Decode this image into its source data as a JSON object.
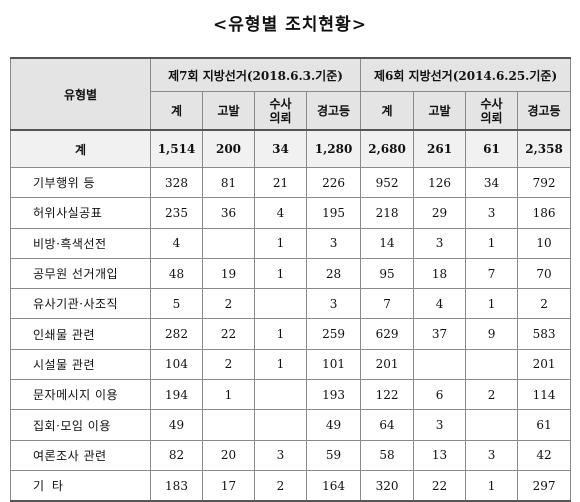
{
  "title": "<유형별 조치현황>",
  "headers": {
    "category": "유형별",
    "group7": "제7회 지방선거(2018.6.3.기준)",
    "group6": "제6회 지방선거(2014.6.25.기준)",
    "sub": [
      "계",
      "고발",
      "수사\n의뢰",
      "경고등",
      "계",
      "고발",
      "수사\n의뢰",
      "경고등"
    ]
  },
  "rows": [
    {
      "category": "계",
      "values": [
        "1,514",
        "200",
        "34",
        "1,280",
        "2,680",
        "261",
        "61",
        "2,358"
      ]
    },
    {
      "category": "기부행위 등",
      "values": [
        "328",
        "81",
        "21",
        "226",
        "952",
        "126",
        "34",
        "792"
      ]
    },
    {
      "category": "허위사실공표",
      "values": [
        "235",
        "36",
        "4",
        "195",
        "218",
        "29",
        "3",
        "186"
      ]
    },
    {
      "category": "비방·흑색선전",
      "values": [
        "4",
        "",
        "1",
        "3",
        "14",
        "3",
        "1",
        "10"
      ]
    },
    {
      "category": "공무원 선거개입",
      "values": [
        "48",
        "19",
        "1",
        "28",
        "95",
        "18",
        "7",
        "70"
      ]
    },
    {
      "category": "유사기관·사조직",
      "values": [
        "5",
        "2",
        "",
        "3",
        "7",
        "4",
        "1",
        "2"
      ]
    },
    {
      "category": "인쇄물 관련",
      "values": [
        "282",
        "22",
        "1",
        "259",
        "629",
        "37",
        "9",
        "583"
      ]
    },
    {
      "category": "시설물 관련",
      "values": [
        "104",
        "2",
        "1",
        "101",
        "201",
        "",
        "",
        "201"
      ]
    },
    {
      "category": "문자메시지 이용",
      "values": [
        "194",
        "1",
        "",
        "193",
        "122",
        "6",
        "2",
        "114"
      ]
    },
    {
      "category": "집회·모임 이용",
      "values": [
        "49",
        "",
        "",
        "49",
        "64",
        "3",
        "",
        "61"
      ]
    },
    {
      "category": "여론조사 관련",
      "values": [
        "82",
        "20",
        "3",
        "59",
        "58",
        "13",
        "3",
        "42"
      ]
    },
    {
      "category": "기 타",
      "values": [
        "183",
        "17",
        "2",
        "164",
        "320",
        "22",
        "1",
        "297"
      ]
    }
  ]
}
